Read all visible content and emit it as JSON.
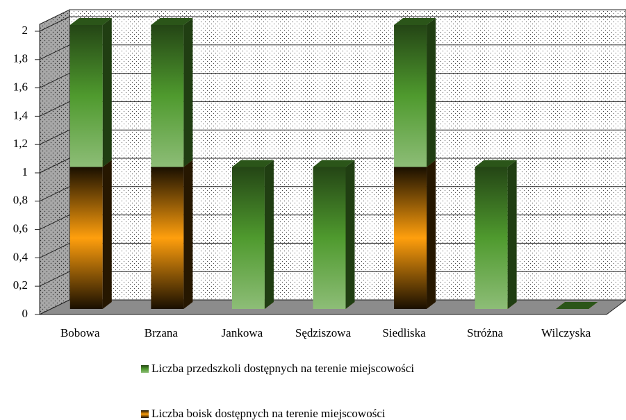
{
  "chart_data": {
    "type": "bar3d_stacked",
    "categories": [
      "Bobowa",
      "Brzana",
      "Jankowa",
      "Sędziszowa",
      "Siedliska",
      "Stróżna",
      "Wilczyska"
    ],
    "series": [
      {
        "name": "Liczba przedszkoli dostępnych na terenie miejscowości",
        "color": "#4f9a2e",
        "values": [
          1,
          1,
          1,
          1,
          1,
          1,
          0
        ]
      },
      {
        "name": "Liczba boisk dostępnych na terenie miejscowości",
        "color": "#ff9a00",
        "values": [
          1,
          1,
          0,
          0,
          1,
          0,
          0
        ]
      }
    ],
    "ylim": [
      0,
      2
    ],
    "yticks": [
      0,
      {
        "value": 0.2,
        "label": "0,2"
      },
      {
        "value": 0.4,
        "label": "0,4"
      },
      {
        "value": 0.6,
        "label": "0,6"
      },
      {
        "value": 0.8,
        "label": "0,8"
      },
      1,
      {
        "value": 1.2,
        "label": "1,2"
      },
      {
        "value": 1.4,
        "label": "1,4"
      },
      {
        "value": 1.6,
        "label": "1,6"
      },
      {
        "value": 1.8,
        "label": "1,8"
      },
      2
    ],
    "grid": true,
    "legend": "bottom"
  }
}
